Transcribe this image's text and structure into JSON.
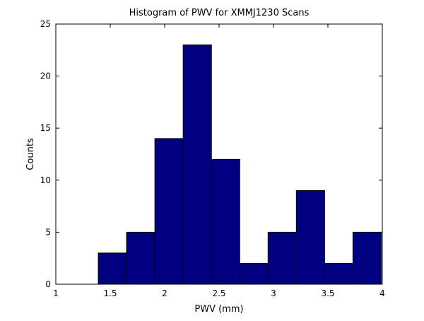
{
  "chart_data": {
    "type": "bar",
    "title": "Histogram of PWV for XMMJ1230 Scans",
    "xlabel": "PWV (mm)",
    "ylabel": "Counts",
    "xlim": [
      1,
      4
    ],
    "ylim": [
      0,
      25
    ],
    "x_ticks": [
      1,
      1.5,
      2,
      2.5,
      3,
      3.5,
      4
    ],
    "x_tick_labels": [
      "1",
      "1.5",
      "2",
      "2.5",
      "3",
      "3.5",
      "4"
    ],
    "y_ticks": [
      0,
      5,
      10,
      15,
      20,
      25
    ],
    "y_tick_labels": [
      "0",
      "5",
      "10",
      "15",
      "20",
      "25"
    ],
    "bin_edges": [
      1.39,
      1.65,
      1.91,
      2.17,
      2.43,
      2.69,
      2.95,
      3.21,
      3.47,
      3.73,
      3.99
    ],
    "values": [
      3,
      5,
      14,
      23,
      12,
      2,
      5,
      9,
      2,
      5
    ],
    "grid": false,
    "colors": {
      "bar_fill": "#000080",
      "bar_edge": "#000000",
      "axes": "#000000",
      "background": "#ffffff"
    }
  }
}
